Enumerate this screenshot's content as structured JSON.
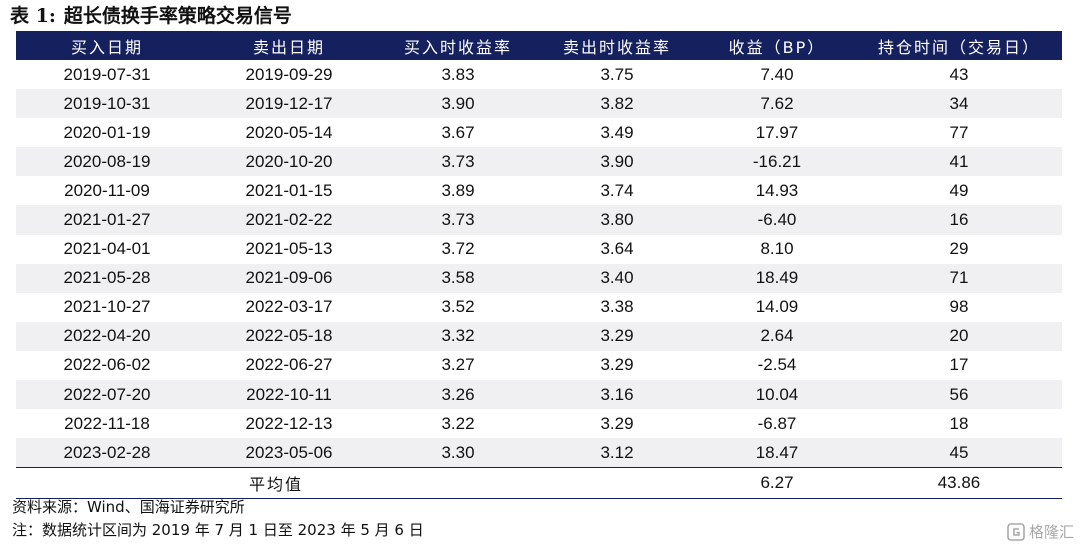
{
  "title": {
    "label": "表 1:",
    "text": "超长债换手率策略交易信号"
  },
  "table": {
    "headers": [
      "买入日期",
      "卖出日期",
      "买入时收益率",
      "卖出时收益率",
      "收益（BP）",
      "持仓时间（交易日）"
    ],
    "rows": [
      [
        "2019-07-31",
        "2019-09-29",
        "3.83",
        "3.75",
        "7.40",
        "43"
      ],
      [
        "2019-10-31",
        "2019-12-17",
        "3.90",
        "3.82",
        "7.62",
        "34"
      ],
      [
        "2020-01-19",
        "2020-05-14",
        "3.67",
        "3.49",
        "17.97",
        "77"
      ],
      [
        "2020-08-19",
        "2020-10-20",
        "3.73",
        "3.90",
        "-16.21",
        "41"
      ],
      [
        "2020-11-09",
        "2021-01-15",
        "3.89",
        "3.74",
        "14.93",
        "49"
      ],
      [
        "2021-01-27",
        "2021-02-22",
        "3.73",
        "3.80",
        "-6.40",
        "16"
      ],
      [
        "2021-04-01",
        "2021-05-13",
        "3.72",
        "3.64",
        "8.10",
        "29"
      ],
      [
        "2021-05-28",
        "2021-09-06",
        "3.58",
        "3.40",
        "18.49",
        "71"
      ],
      [
        "2021-10-27",
        "2022-03-17",
        "3.52",
        "3.38",
        "14.09",
        "98"
      ],
      [
        "2022-04-20",
        "2022-05-18",
        "3.32",
        "3.29",
        "2.64",
        "20"
      ],
      [
        "2022-06-02",
        "2022-06-27",
        "3.27",
        "3.29",
        "-2.54",
        "17"
      ],
      [
        "2022-07-20",
        "2022-10-11",
        "3.26",
        "3.16",
        "10.04",
        "56"
      ],
      [
        "2022-11-18",
        "2022-12-13",
        "3.22",
        "3.29",
        "-6.87",
        "18"
      ],
      [
        "2023-02-28",
        "2023-05-06",
        "3.30",
        "3.12",
        "18.47",
        "45"
      ]
    ],
    "average": {
      "label": "平均值",
      "return_bp": "6.27",
      "holding_days": "43.86"
    }
  },
  "notes": {
    "source": "资料来源：Wind、国海证券研究所",
    "note": "注：数据统计区间为 2019 年 7 月 1 日至 2023 年 5 月 6 日"
  },
  "watermark": {
    "text": "格隆汇",
    "icon": "gelonghui-logo-icon"
  },
  "colors": {
    "header_bg": "#15205e",
    "header_text": "#ffffff",
    "stripe_bg": "#f0f0f2"
  }
}
